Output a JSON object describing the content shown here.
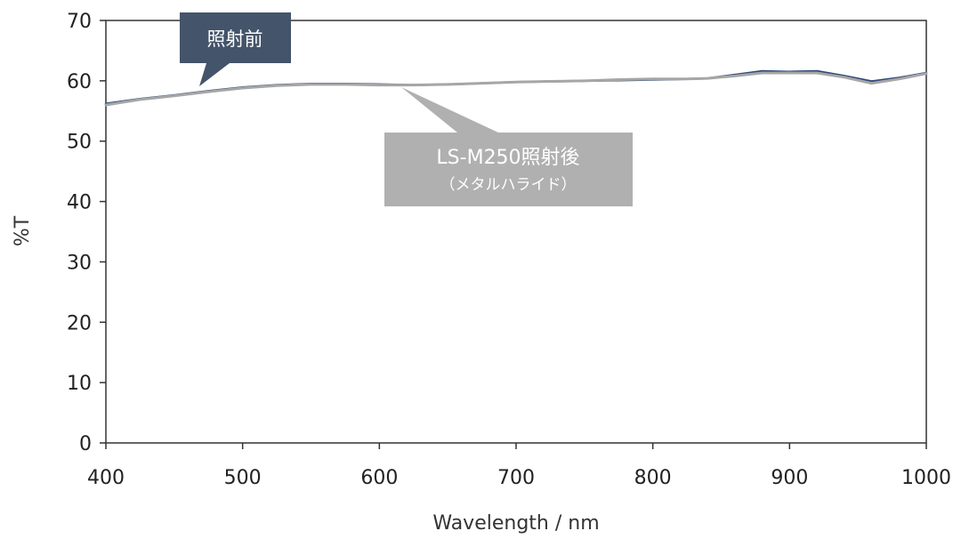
{
  "chart_data": {
    "type": "line",
    "title": "",
    "xlabel": "Wavelength / nm",
    "ylabel": "%T",
    "xlim": [
      400,
      1000
    ],
    "ylim": [
      0,
      70
    ],
    "x_ticks": [
      400,
      500,
      600,
      700,
      800,
      900,
      1000
    ],
    "y_ticks": [
      0,
      10,
      20,
      30,
      40,
      50,
      60,
      70
    ],
    "grid": false,
    "legend": "none",
    "series": [
      {
        "color": "#2f4a78",
        "x": [
          400,
          425,
          450,
          475,
          500,
          525,
          550,
          575,
          600,
          625,
          650,
          675,
          700,
          725,
          750,
          775,
          800,
          825,
          840,
          860,
          880,
          900,
          920,
          940,
          960,
          980,
          1000
        ],
        "y": [
          56.2,
          57.0,
          57.6,
          58.3,
          58.9,
          59.3,
          59.5,
          59.5,
          59.4,
          59.3,
          59.4,
          59.6,
          59.8,
          59.9,
          60.0,
          60.1,
          60.2,
          60.3,
          60.4,
          61.0,
          61.6,
          61.5,
          61.6,
          60.8,
          59.9,
          60.5,
          61.3
        ]
      },
      {
        "color": "#a6a6a6",
        "x": [
          400,
          425,
          450,
          475,
          500,
          525,
          550,
          575,
          600,
          625,
          650,
          675,
          700,
          725,
          750,
          775,
          800,
          825,
          840,
          860,
          880,
          900,
          920,
          940,
          960,
          980,
          1000
        ],
        "y": [
          56.0,
          56.9,
          57.5,
          58.2,
          58.8,
          59.2,
          59.4,
          59.4,
          59.3,
          59.3,
          59.4,
          59.6,
          59.8,
          59.9,
          60.0,
          60.2,
          60.3,
          60.3,
          60.4,
          60.8,
          61.3,
          61.3,
          61.3,
          60.6,
          59.6,
          60.3,
          61.2
        ]
      }
    ],
    "annotations": [
      {
        "line1": "照射前",
        "color": "#44546a"
      },
      {
        "line1": "LS-M250照射後",
        "line2": "（メタルハライド）",
        "color": "#b0b0b0"
      }
    ]
  }
}
